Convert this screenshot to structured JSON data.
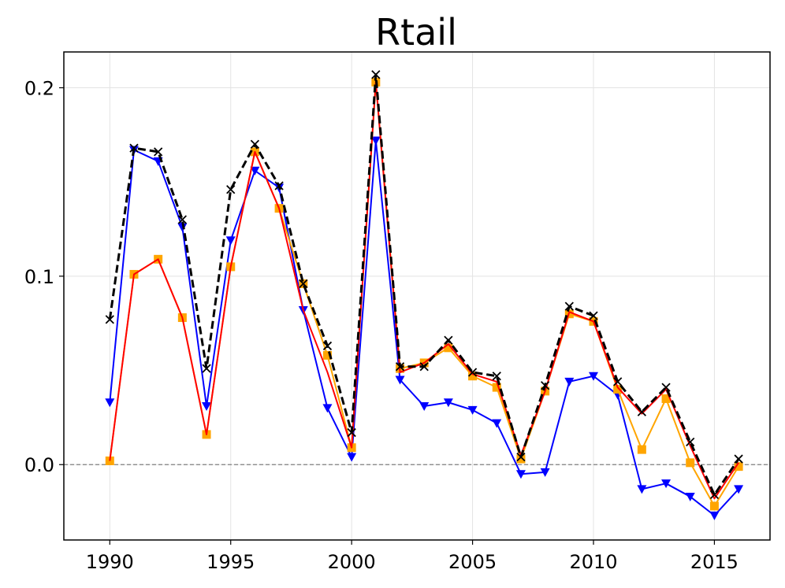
{
  "chart_data": {
    "type": "line",
    "title": "Rtail",
    "xlabel": "",
    "ylabel": "",
    "xlim": [
      1988.1,
      2017.3
    ],
    "ylim": [
      -0.04,
      0.219
    ],
    "xticks": [
      1990,
      1995,
      2000,
      2005,
      2010,
      2015
    ],
    "xtick_labels": [
      "1990",
      "1995",
      "2000",
      "2005",
      "2010",
      "2015"
    ],
    "yticks": [
      0.0,
      0.1,
      0.2
    ],
    "ytick_labels": [
      "0.0",
      "0.1",
      "0.2"
    ],
    "grid": true,
    "reference_line": {
      "y": 0.0,
      "style": "dashed",
      "color": "#808080"
    },
    "x": [
      1990,
      1991,
      1992,
      1993,
      1994,
      1995,
      1996,
      1997,
      1998,
      1999,
      2000,
      2001,
      2002,
      2003,
      2004,
      2005,
      2006,
      2007,
      2008,
      2009,
      2010,
      2011,
      2012,
      2013,
      2014,
      2015,
      2016
    ],
    "series": [
      {
        "color": "#0000ff",
        "marker": "triangle-down",
        "line_style": "solid",
        "values": [
          0.033,
          0.167,
          0.161,
          0.126,
          0.031,
          0.119,
          0.156,
          0.147,
          0.082,
          0.03,
          0.004,
          0.172,
          0.045,
          0.031,
          0.033,
          0.029,
          0.022,
          -0.005,
          -0.004,
          0.044,
          0.047,
          0.037,
          -0.013,
          -0.01,
          -0.017,
          -0.027,
          -0.013
        ]
      },
      {
        "color": "#ffa500",
        "marker": "square",
        "line_style": "solid",
        "values": [
          0.002,
          0.101,
          0.109,
          0.078,
          0.016,
          0.105,
          0.166,
          0.136,
          0.096,
          0.058,
          0.009,
          0.203,
          0.051,
          0.054,
          0.062,
          0.047,
          0.041,
          0.003,
          0.039,
          0.08,
          0.076,
          0.04,
          0.008,
          0.035,
          0.001,
          -0.022,
          -0.001
        ]
      },
      {
        "color": "#ff0000",
        "marker": "none",
        "line_style": "solid",
        "values": [
          0.002,
          0.101,
          0.109,
          0.078,
          0.016,
          0.105,
          0.166,
          0.136,
          0.082,
          0.049,
          0.009,
          0.203,
          0.049,
          0.054,
          0.064,
          0.048,
          0.044,
          0.005,
          0.039,
          0.081,
          0.076,
          0.041,
          0.027,
          0.04,
          0.01,
          -0.018,
          0.001
        ]
      },
      {
        "color": "#000000",
        "marker": "x",
        "line_style": "dashed",
        "values": [
          0.077,
          0.168,
          0.166,
          0.13,
          0.051,
          0.146,
          0.17,
          0.148,
          0.096,
          0.063,
          0.017,
          0.207,
          0.052,
          0.052,
          0.066,
          0.049,
          0.047,
          0.004,
          0.042,
          0.084,
          0.079,
          0.044,
          0.028,
          0.041,
          0.012,
          -0.016,
          0.003
        ]
      }
    ]
  }
}
